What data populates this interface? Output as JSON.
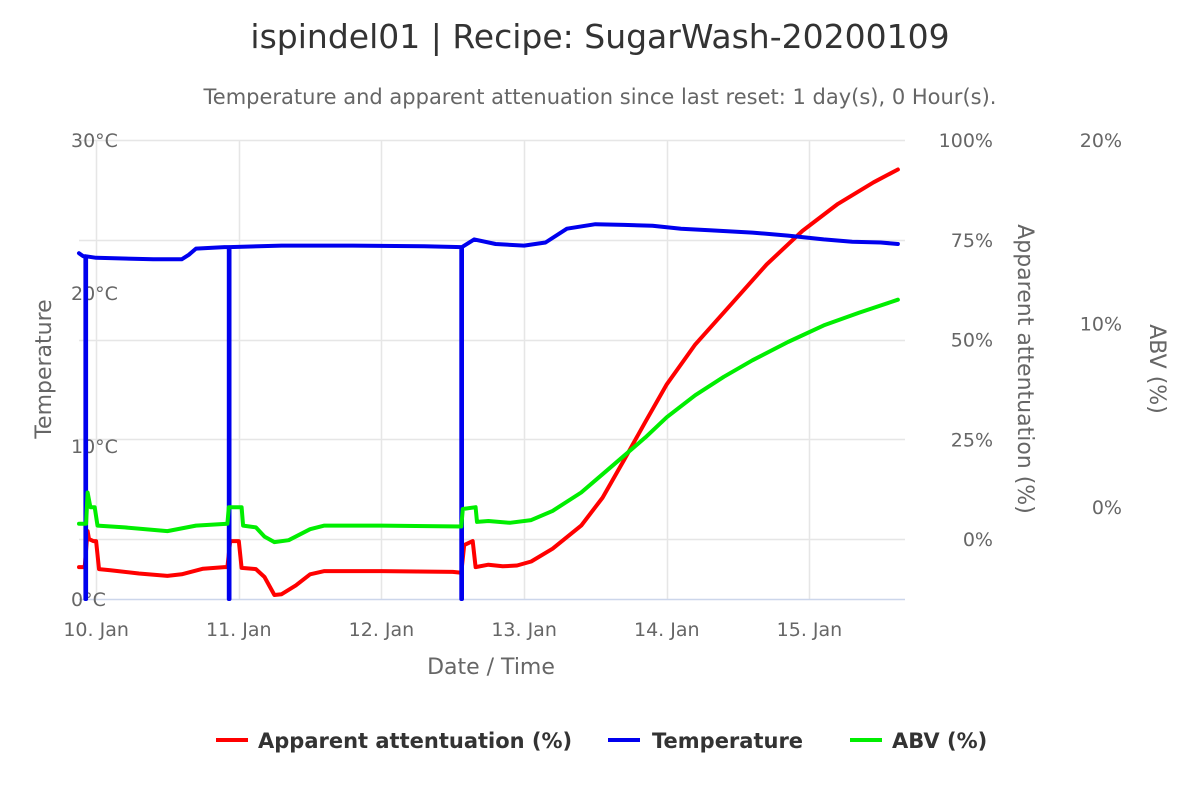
{
  "chart_data": {
    "type": "line",
    "title": "ispindel01 | Recipe: SugarWash-20200109",
    "subtitle": "Temperature and apparent attenuation since last reset: 1 day(s), 0 Hour(s).",
    "xlabel": "Date / Time",
    "xlim": [
      -0.12,
      5.67
    ],
    "x_ticks": [
      {
        "value": 0,
        "label": "10. Jan"
      },
      {
        "value": 1,
        "label": "11. Jan"
      },
      {
        "value": 2,
        "label": "12. Jan"
      },
      {
        "value": 3,
        "label": "13. Jan"
      },
      {
        "value": 4,
        "label": "14. Jan"
      },
      {
        "value": 5,
        "label": "15. Jan"
      }
    ],
    "axes": {
      "temperature": {
        "title": "Temperature",
        "ylim": [
          0,
          30
        ],
        "ticks": [
          {
            "value": 0,
            "label": "0°C"
          },
          {
            "value": 10,
            "label": "10°C"
          },
          {
            "value": 20,
            "label": "20°C"
          },
          {
            "value": 30,
            "label": "30°C"
          }
        ]
      },
      "attenuation": {
        "title": "Apparent attentuation (%)",
        "ylim": [
          -15,
          100
        ],
        "ticks": [
          {
            "value": 0,
            "label": "0%"
          },
          {
            "value": 25,
            "label": "25%"
          },
          {
            "value": 50,
            "label": "50%"
          },
          {
            "value": 75,
            "label": "75%"
          },
          {
            "value": 100,
            "label": "100%"
          }
        ]
      },
      "abv": {
        "title": "ABV (%)",
        "ylim": [
          -5,
          20
        ],
        "ticks": [
          {
            "value": 0,
            "label": "0%"
          },
          {
            "value": 10,
            "label": "10%"
          },
          {
            "value": 20,
            "label": "20%"
          }
        ]
      }
    },
    "series": [
      {
        "name": "Apparent attentuation (%)",
        "axis": "attenuation",
        "color": "#ff0000",
        "points": [
          [
            -0.12,
            -7
          ],
          [
            -0.08,
            -7
          ],
          [
            -0.06,
            2
          ],
          [
            -0.05,
            0
          ],
          [
            -0.02,
            -0.5
          ],
          [
            0.0,
            -0.5
          ],
          [
            0.02,
            -7.5
          ],
          [
            0.1,
            -7.8
          ],
          [
            0.3,
            -8.6
          ],
          [
            0.5,
            -9.2
          ],
          [
            0.6,
            -8.8
          ],
          [
            0.75,
            -7.4
          ],
          [
            0.9,
            -7
          ],
          [
            0.92,
            -7
          ],
          [
            0.94,
            -0.5
          ],
          [
            1.0,
            -0.5
          ],
          [
            1.02,
            -7.2
          ],
          [
            1.12,
            -7.5
          ],
          [
            1.18,
            -9.5
          ],
          [
            1.25,
            -14
          ],
          [
            1.3,
            -13.8
          ],
          [
            1.4,
            -11.6
          ],
          [
            1.5,
            -8.8
          ],
          [
            1.6,
            -8
          ],
          [
            2.0,
            -8
          ],
          [
            2.5,
            -8.2
          ],
          [
            2.56,
            -8.4
          ],
          [
            2.58,
            -1.5
          ],
          [
            2.64,
            -0.5
          ],
          [
            2.66,
            -7
          ],
          [
            2.75,
            -6.4
          ],
          [
            2.85,
            -6.8
          ],
          [
            2.95,
            -6.6
          ],
          [
            3.05,
            -5.6
          ],
          [
            3.2,
            -2.4
          ],
          [
            3.4,
            3.4
          ],
          [
            3.55,
            10.4
          ],
          [
            3.7,
            19.8
          ],
          [
            3.85,
            29.4
          ],
          [
            4.0,
            38.8
          ],
          [
            4.2,
            48.8
          ],
          [
            4.45,
            58.8
          ],
          [
            4.7,
            68.8
          ],
          [
            4.95,
            77.2
          ],
          [
            5.2,
            84
          ],
          [
            5.45,
            89.4
          ],
          [
            5.62,
            92.6
          ]
        ]
      },
      {
        "name": "Temperature",
        "axis": "temperature",
        "color": "#0000ee",
        "points": [
          [
            -0.12,
            22.6
          ],
          [
            -0.09,
            22.4
          ],
          [
            -0.075,
            22.4
          ],
          [
            -0.075,
            0
          ],
          [
            -0.07,
            0
          ],
          [
            -0.07,
            22.4
          ],
          [
            0.0,
            22.3
          ],
          [
            0.4,
            22.2
          ],
          [
            0.6,
            22.2
          ],
          [
            0.65,
            22.5
          ],
          [
            0.7,
            22.9
          ],
          [
            0.9,
            23.0
          ],
          [
            0.93,
            23.0
          ],
          [
            0.93,
            0
          ],
          [
            0.935,
            0
          ],
          [
            0.935,
            23.0
          ],
          [
            1.3,
            23.1
          ],
          [
            1.8,
            23.1
          ],
          [
            2.3,
            23.05
          ],
          [
            2.56,
            23.0
          ],
          [
            2.56,
            0
          ],
          [
            2.565,
            0
          ],
          [
            2.565,
            23.0
          ],
          [
            2.65,
            23.5
          ],
          [
            2.8,
            23.2
          ],
          [
            3.0,
            23.1
          ],
          [
            3.15,
            23.3
          ],
          [
            3.3,
            24.2
          ],
          [
            3.5,
            24.5
          ],
          [
            3.7,
            24.45
          ],
          [
            3.9,
            24.4
          ],
          [
            4.1,
            24.2
          ],
          [
            4.3,
            24.1
          ],
          [
            4.6,
            23.95
          ],
          [
            4.85,
            23.75
          ],
          [
            5.1,
            23.5
          ],
          [
            5.3,
            23.35
          ],
          [
            5.5,
            23.3
          ],
          [
            5.62,
            23.2
          ]
        ]
      },
      {
        "name": "ABV (%)",
        "axis": "abv",
        "color": "#00ee00",
        "points": [
          [
            -0.12,
            -0.9
          ],
          [
            -0.07,
            -0.9
          ],
          [
            -0.06,
            0.8
          ],
          [
            -0.04,
            0
          ],
          [
            -0.01,
            0
          ],
          [
            0.01,
            -1.0
          ],
          [
            0.2,
            -1.1
          ],
          [
            0.5,
            -1.3
          ],
          [
            0.7,
            -1.0
          ],
          [
            0.92,
            -0.9
          ],
          [
            0.93,
            0.0
          ],
          [
            1.02,
            0.0
          ],
          [
            1.03,
            -1.0
          ],
          [
            1.12,
            -1.1
          ],
          [
            1.18,
            -1.6
          ],
          [
            1.25,
            -1.9
          ],
          [
            1.35,
            -1.8
          ],
          [
            1.5,
            -1.2
          ],
          [
            1.6,
            -1.0
          ],
          [
            2.0,
            -1.0
          ],
          [
            2.56,
            -1.05
          ],
          [
            2.57,
            -0.1
          ],
          [
            2.66,
            0.0
          ],
          [
            2.67,
            -0.8
          ],
          [
            2.75,
            -0.75
          ],
          [
            2.9,
            -0.85
          ],
          [
            3.05,
            -0.7
          ],
          [
            3.2,
            -0.2
          ],
          [
            3.4,
            0.8
          ],
          [
            3.55,
            1.8
          ],
          [
            3.7,
            2.8
          ],
          [
            3.85,
            3.8
          ],
          [
            4.0,
            4.9
          ],
          [
            4.2,
            6.1
          ],
          [
            4.4,
            7.1
          ],
          [
            4.6,
            8.0
          ],
          [
            4.85,
            9.0
          ],
          [
            5.1,
            9.9
          ],
          [
            5.35,
            10.6
          ],
          [
            5.62,
            11.3
          ]
        ]
      }
    ],
    "legend": {
      "position": "bottom"
    }
  }
}
